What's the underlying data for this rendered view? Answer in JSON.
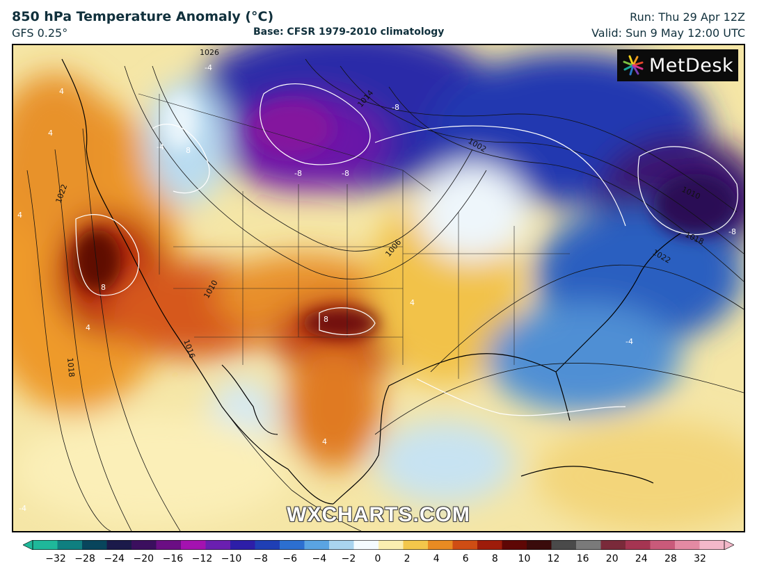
{
  "header": {
    "title": "850 hPa Temperature Anomaly (°C)",
    "model": "GFS 0.25°",
    "base": "Base: CFSR 1979-2010 climatology",
    "run": "Run: Thu 29 Apr 12Z",
    "valid": "Valid: Sun 9 May 12:00 UTC"
  },
  "logo": {
    "text": "MetDesk",
    "icon": "metdesk-pinwheel-icon"
  },
  "watermark": "WXCHARTS.COM",
  "map": {
    "region": "North America",
    "isobar_labels": [
      "1026",
      "1022",
      "1018",
      "1014",
      "1010",
      "1006",
      "1002",
      "1010",
      "1018",
      "1022",
      "1016"
    ],
    "anomaly_labels": [
      "4",
      "-4",
      "4",
      "4",
      "8",
      "4",
      "-8",
      "8",
      "-8",
      "-8",
      "8",
      "4",
      "-4",
      "4",
      "-8",
      "-4",
      "-4"
    ]
  },
  "colorbar": {
    "ticks": [
      "−32",
      "−28",
      "−24",
      "−20",
      "−16",
      "−12",
      "−10",
      "−8",
      "−6",
      "−4",
      "−2",
      "0",
      "2",
      "4",
      "6",
      "8",
      "10",
      "12",
      "16",
      "20",
      "24",
      "28",
      "32"
    ],
    "colors": [
      "#1fb89a",
      "#0f7f80",
      "#08455c",
      "#1b1a4a",
      "#3b0f5e",
      "#6b0e84",
      "#a412b0",
      "#6a1fb0",
      "#2d1ea8",
      "#1f3fb5",
      "#2c6fd0",
      "#5aa4e2",
      "#a9d4ef",
      "#f4fbff",
      "#fbeeb0",
      "#f3c74b",
      "#e98b22",
      "#cf4d14",
      "#9e1c0a",
      "#5e0705",
      "#3a0b0b",
      "#4a4a4a",
      "#7a7a7a",
      "#7a2a3a",
      "#a53552",
      "#c95a7a",
      "#e48aa3",
      "#f3b8c9"
    ]
  }
}
